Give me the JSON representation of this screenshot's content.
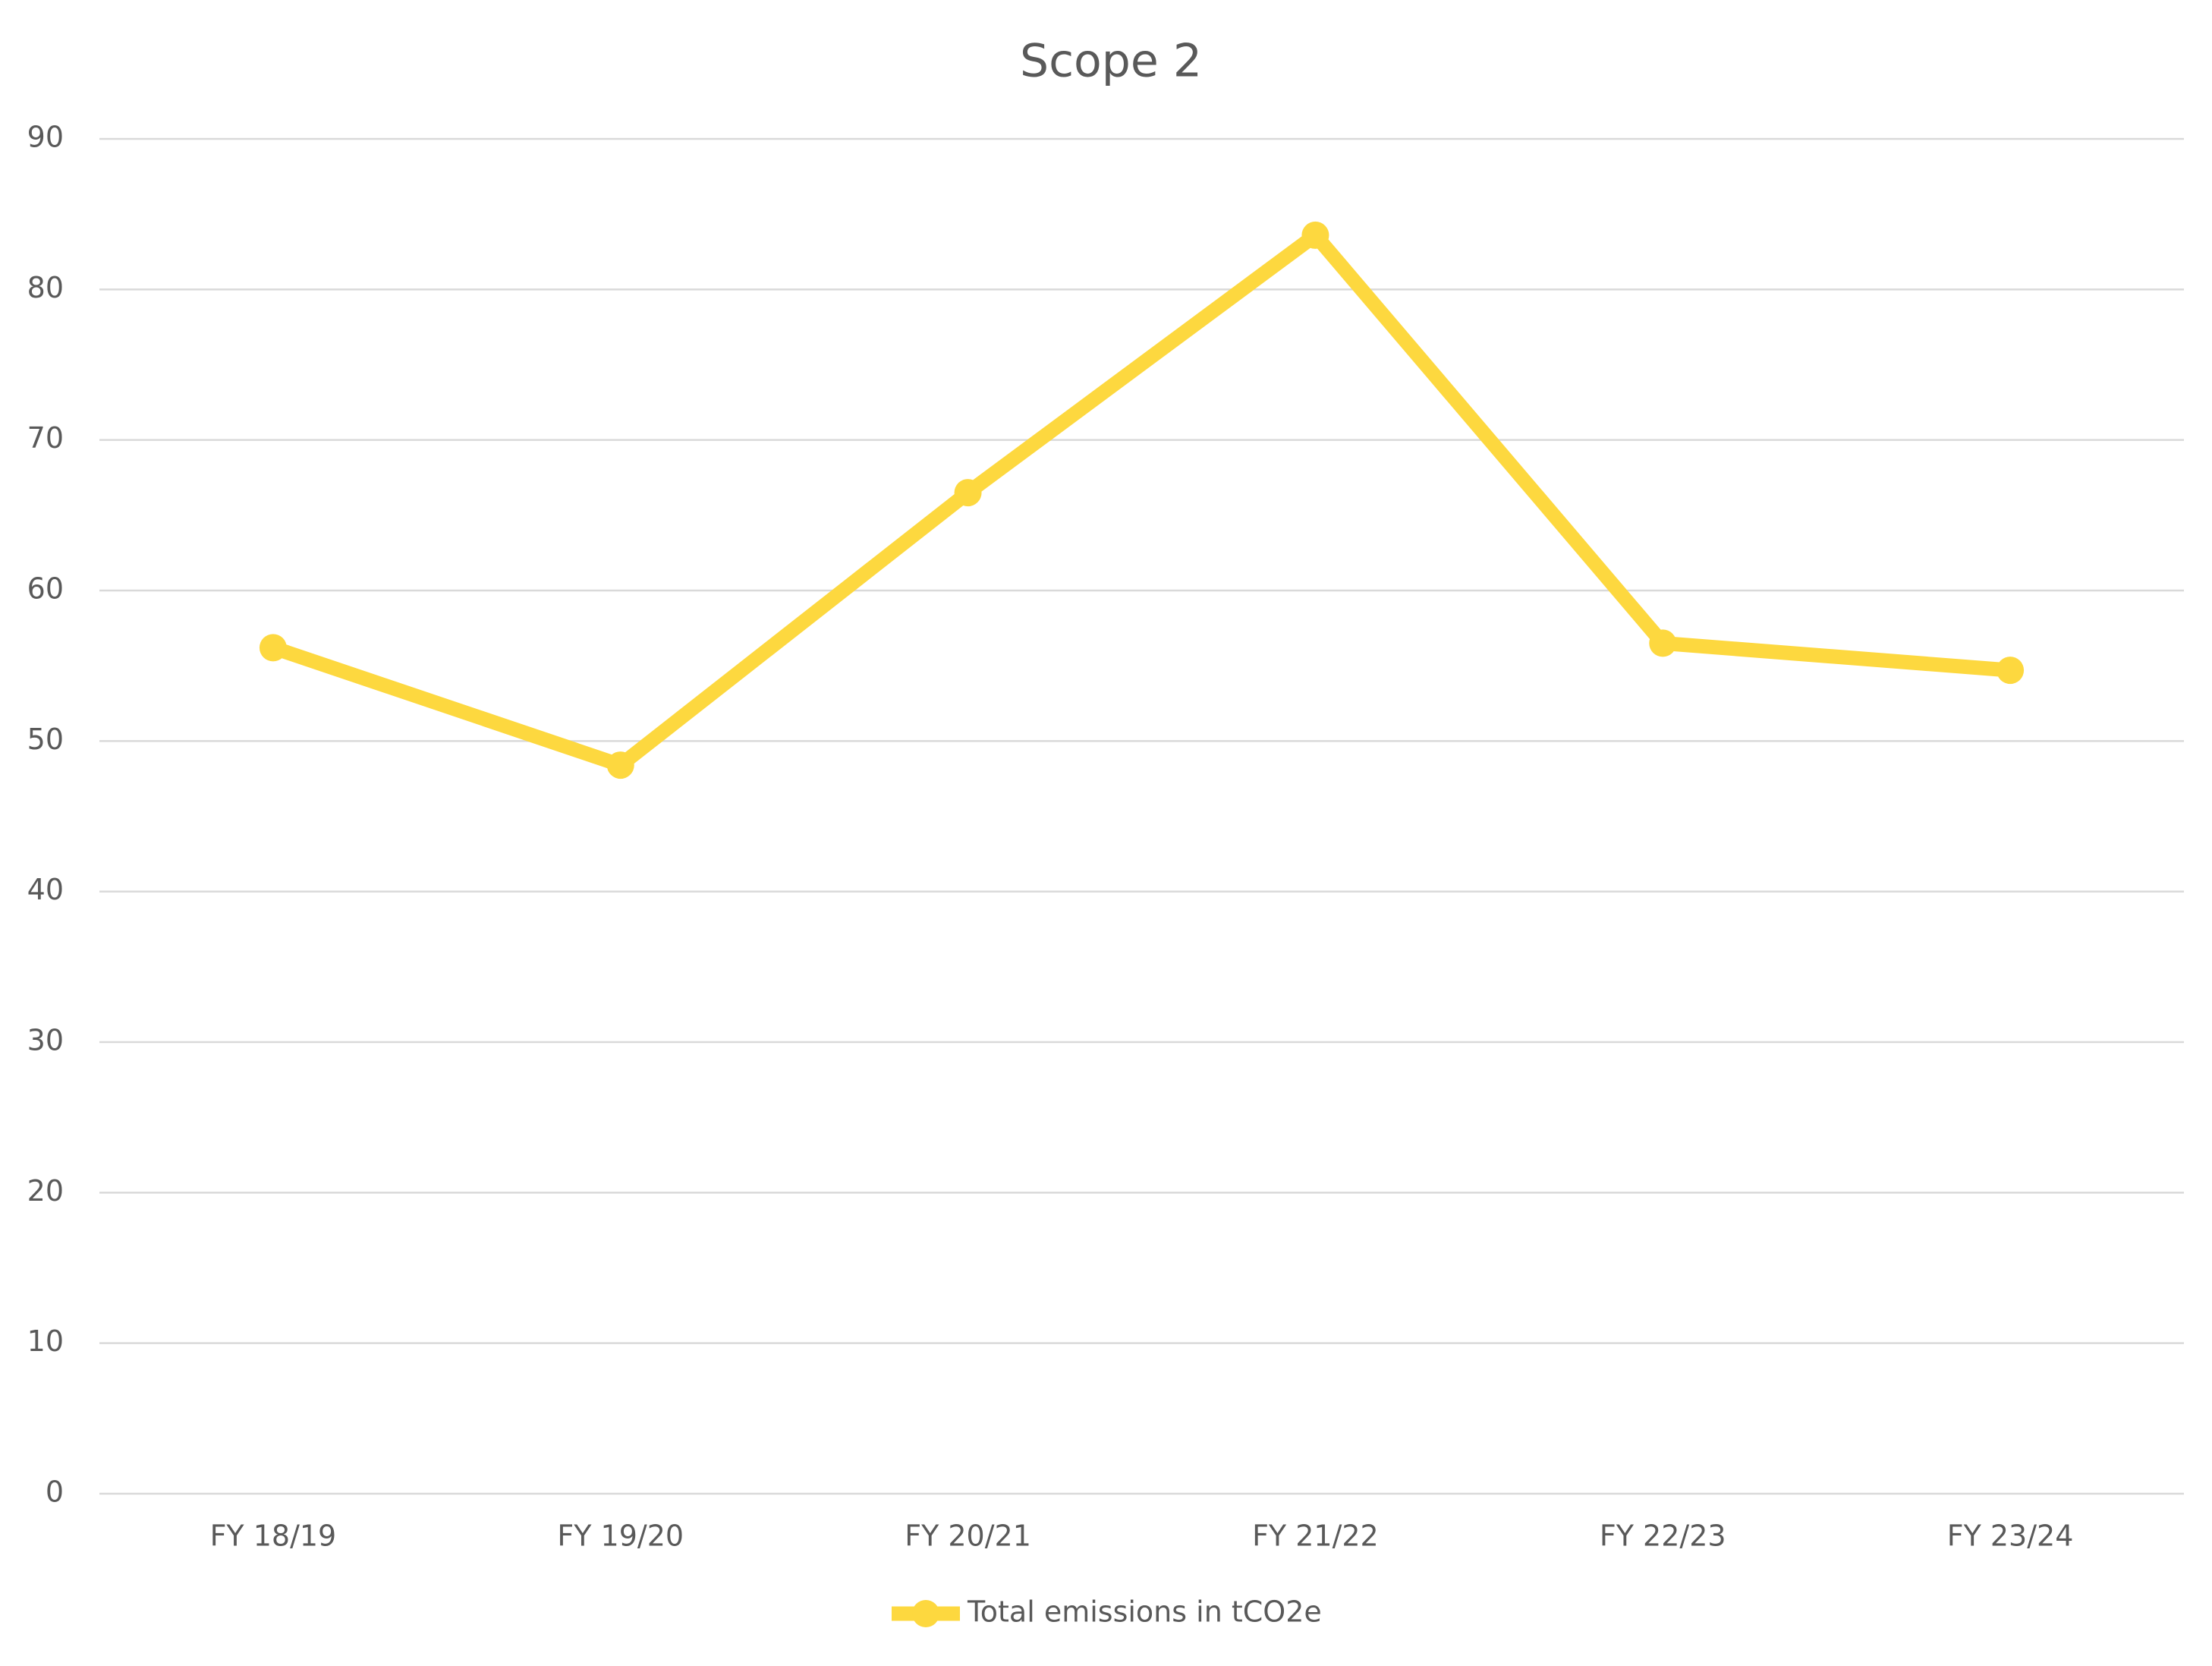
{
  "chart_data": {
    "type": "line",
    "title": "Scope 2",
    "categories": [
      "FY 18/19",
      "FY 19/20",
      "FY 20/21",
      "FY 21/22",
      "FY 22/23",
      "FY 23/24"
    ],
    "series": [
      {
        "name": "Total emissions in tCO2e",
        "color": "#fdd83f",
        "values": [
          56.2,
          48.4,
          66.5,
          83.6,
          56.5,
          54.7
        ]
      }
    ],
    "ylim": [
      0,
      90
    ],
    "yticks": [
      0,
      10,
      20,
      30,
      40,
      50,
      60,
      70,
      80,
      90
    ],
    "grid": true,
    "legend": "bottom"
  }
}
